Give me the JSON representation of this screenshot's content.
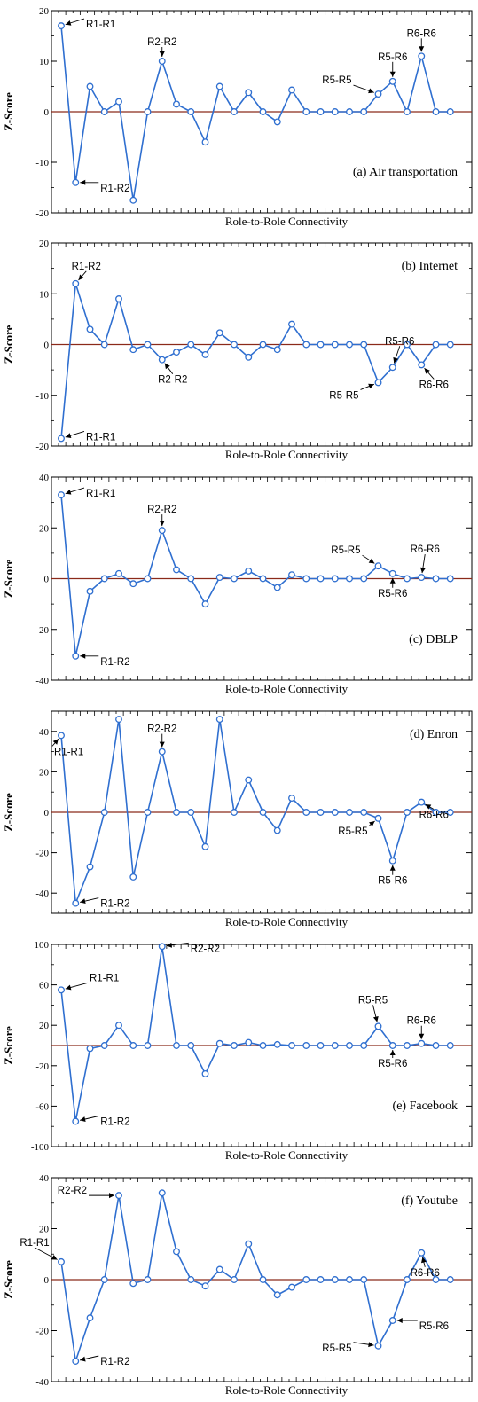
{
  "style": {
    "series_color": "#2f6fd0",
    "zero_line_color": "#8b2a1a",
    "axis_color": "#000000"
  },
  "chart_data": [
    {
      "type": "line",
      "title": "(a) Air transportation",
      "xlabel": "Role-to-Role Connectivity",
      "ylabel": "Z-Score",
      "ylim": [
        -20,
        20
      ],
      "yticks": [
        -20,
        -10,
        0,
        10,
        20
      ],
      "grid": false,
      "title_position": "bottom-right",
      "series": [
        {
          "values": [
            17,
            -14,
            5,
            0,
            2,
            -17.5,
            0,
            10,
            1.5,
            0,
            -6,
            5,
            0,
            3.8,
            0,
            -2,
            4.3,
            0,
            0,
            0,
            0,
            0,
            3.5,
            6,
            0,
            11,
            0,
            0
          ]
        }
      ],
      "annotations": [
        {
          "text": "R1-R1",
          "index": 0
        },
        {
          "text": "R1-R2",
          "index": 1
        },
        {
          "text": "R2-R2",
          "index": 7
        },
        {
          "text": "R5-R5",
          "index": 22
        },
        {
          "text": "R5-R6",
          "index": 23
        },
        {
          "text": "R6-R6",
          "index": 25
        }
      ]
    },
    {
      "type": "line",
      "title": "(b) Internet",
      "xlabel": "Role-to-Role Connectivity",
      "ylabel": "Z-Score",
      "ylim": [
        -20,
        20
      ],
      "yticks": [
        -20,
        -10,
        0,
        10,
        20
      ],
      "grid": false,
      "title_position": "top-right",
      "series": [
        {
          "values": [
            -18.5,
            12,
            3,
            0,
            9,
            -1,
            0,
            -3,
            -1.5,
            0,
            -2,
            2.3,
            0,
            -2.5,
            0,
            -1,
            4,
            0,
            0,
            0,
            0,
            0,
            -7.5,
            -4.5,
            0,
            -4,
            0,
            0
          ]
        }
      ],
      "annotations": [
        {
          "text": "R1-R1",
          "index": 0
        },
        {
          "text": "R1-R2",
          "index": 1
        },
        {
          "text": "R2-R2",
          "index": 7
        },
        {
          "text": "R5-R5",
          "index": 22
        },
        {
          "text": "R5-R6",
          "index": 23
        },
        {
          "text": "R6-R6",
          "index": 25
        }
      ]
    },
    {
      "type": "line",
      "title": "(c) DBLP",
      "xlabel": "Role-to-Role Connectivity",
      "ylabel": "Z-Score",
      "ylim": [
        -40,
        40
      ],
      "yticks": [
        -40,
        -20,
        0,
        20,
        40
      ],
      "grid": false,
      "title_position": "bottom-right",
      "series": [
        {
          "values": [
            33,
            -30.5,
            -5,
            0,
            2,
            -2,
            0,
            19,
            3.5,
            0,
            -10,
            0.5,
            0,
            3,
            0,
            -3.5,
            1.5,
            0,
            0,
            0,
            0,
            0,
            5,
            2,
            0,
            0.5,
            0,
            0
          ]
        }
      ],
      "annotations": [
        {
          "text": "R1-R1",
          "index": 0
        },
        {
          "text": "R1-R2",
          "index": 1
        },
        {
          "text": "R2-R2",
          "index": 7
        },
        {
          "text": "R5-R5",
          "index": 22
        },
        {
          "text": "R5-R6",
          "index": 23
        },
        {
          "text": "R6-R6",
          "index": 25
        }
      ]
    },
    {
      "type": "line",
      "title": "(d) Enron",
      "xlabel": "Role-to-Role Connectivity",
      "ylabel": "Z-Score",
      "ylim": [
        -50,
        50
      ],
      "yticks": [
        -40,
        -20,
        0,
        20,
        40
      ],
      "grid": false,
      "title_position": "top-right",
      "series": [
        {
          "values": [
            38,
            -45,
            -27,
            0,
            46,
            -32,
            0,
            30,
            0,
            0,
            -17,
            46,
            0,
            16,
            0,
            -9,
            7,
            0,
            0,
            0,
            0,
            0,
            -3,
            -24,
            0,
            5,
            0,
            0
          ]
        }
      ],
      "annotations": [
        {
          "text": "R1-R1",
          "index": 0
        },
        {
          "text": "R1-R2",
          "index": 1
        },
        {
          "text": "R2-R2",
          "index": 7
        },
        {
          "text": "R5-R5",
          "index": 22
        },
        {
          "text": "R5-R6",
          "index": 23
        },
        {
          "text": "R6-R6",
          "index": 25
        }
      ]
    },
    {
      "type": "line",
      "title": "(e) Facebook",
      "xlabel": "Role-to-Role Connectivity",
      "ylabel": "Z-Score",
      "ylim": [
        -100,
        100
      ],
      "yticks": [
        -100,
        -60,
        -20,
        20,
        60,
        100
      ],
      "grid": false,
      "title_position": "bottom-right",
      "series": [
        {
          "values": [
            55,
            -75,
            -3,
            0,
            20,
            0,
            0,
            98,
            0,
            0,
            -28,
            2,
            0,
            3,
            0,
            1,
            0,
            0,
            0,
            0,
            0,
            0,
            19,
            0,
            0,
            2,
            0,
            0
          ]
        }
      ],
      "annotations": [
        {
          "text": "R1-R1",
          "index": 0
        },
        {
          "text": "R1-R2",
          "index": 1
        },
        {
          "text": "R2-R2",
          "index": 7
        },
        {
          "text": "R5-R5",
          "index": 22
        },
        {
          "text": "R5-R6",
          "index": 23
        },
        {
          "text": "R6-R6",
          "index": 25
        }
      ]
    },
    {
      "type": "line",
      "title": "(f) Youtube",
      "xlabel": "Role-to-Role Connectivity",
      "ylabel": "Z-Score",
      "ylim": [
        -40,
        40
      ],
      "yticks": [
        -40,
        -20,
        0,
        20,
        40
      ],
      "grid": false,
      "title_position": "top-right",
      "series": [
        {
          "values": [
            7,
            -32,
            -15,
            0,
            33,
            -1.5,
            0,
            34,
            11,
            0,
            -2.5,
            4,
            0,
            14,
            0,
            -6,
            -3,
            0,
            0,
            0,
            0,
            0,
            -26,
            -16,
            0,
            10.5,
            0,
            0
          ]
        }
      ],
      "annotations": [
        {
          "text": "R1-R1",
          "index": 0
        },
        {
          "text": "R1-R2",
          "index": 1
        },
        {
          "text": "R2-R2",
          "index": 4
        },
        {
          "text": "R5-R5",
          "index": 22
        },
        {
          "text": "R5-R6",
          "index": 23
        },
        {
          "text": "R6-R6",
          "index": 25
        }
      ]
    }
  ]
}
